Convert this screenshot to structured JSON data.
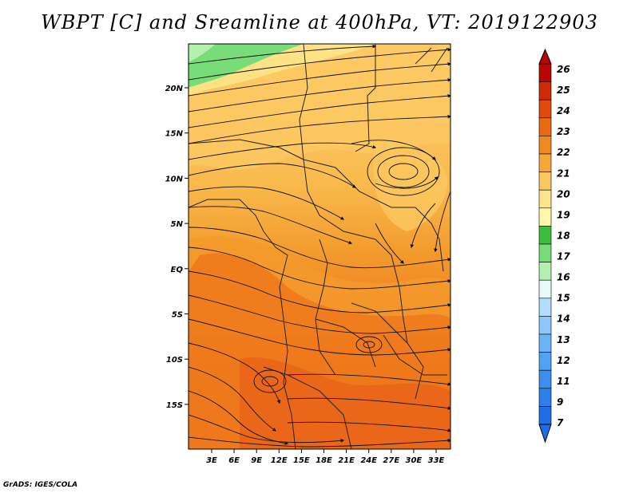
{
  "title": "WBPT [C] and Sreamline at 400hPa, VT: 2019122903",
  "footer": "GrADS: IGES/COLA",
  "chart_data": {
    "type": "map",
    "variable_label": "WBPT [C]",
    "lon_ticks": [
      "3E",
      "6E",
      "9E",
      "12E",
      "15E",
      "18E",
      "21E",
      "24E",
      "27E",
      "30E",
      "33E"
    ],
    "lat_ticks": [
      "20N",
      "15N",
      "10N",
      "5N",
      "EQ",
      "5S",
      "10S",
      "15S"
    ],
    "colorbar": {
      "labels": [
        "7",
        "9",
        "11",
        "12",
        "13",
        "14",
        "15",
        "16",
        "17",
        "18",
        "19",
        "20",
        "21",
        "22",
        "23",
        "24",
        "25",
        "26"
      ],
      "colors": [
        "#1e6ee6",
        "#2a7fea",
        "#3c8ff0",
        "#52a2f4",
        "#6cb4f8",
        "#8cc8fb",
        "#b4dcfd",
        "#e8fbf8",
        "#b4f0b0",
        "#78dc78",
        "#3cbe3c",
        "#fff7aa",
        "#fde48a",
        "#fbc860",
        "#f5a83a",
        "#f08a1e",
        "#ea6a10",
        "#e04a0a",
        "#d02a06",
        "#b80604"
      ],
      "extend": "both"
    }
  }
}
